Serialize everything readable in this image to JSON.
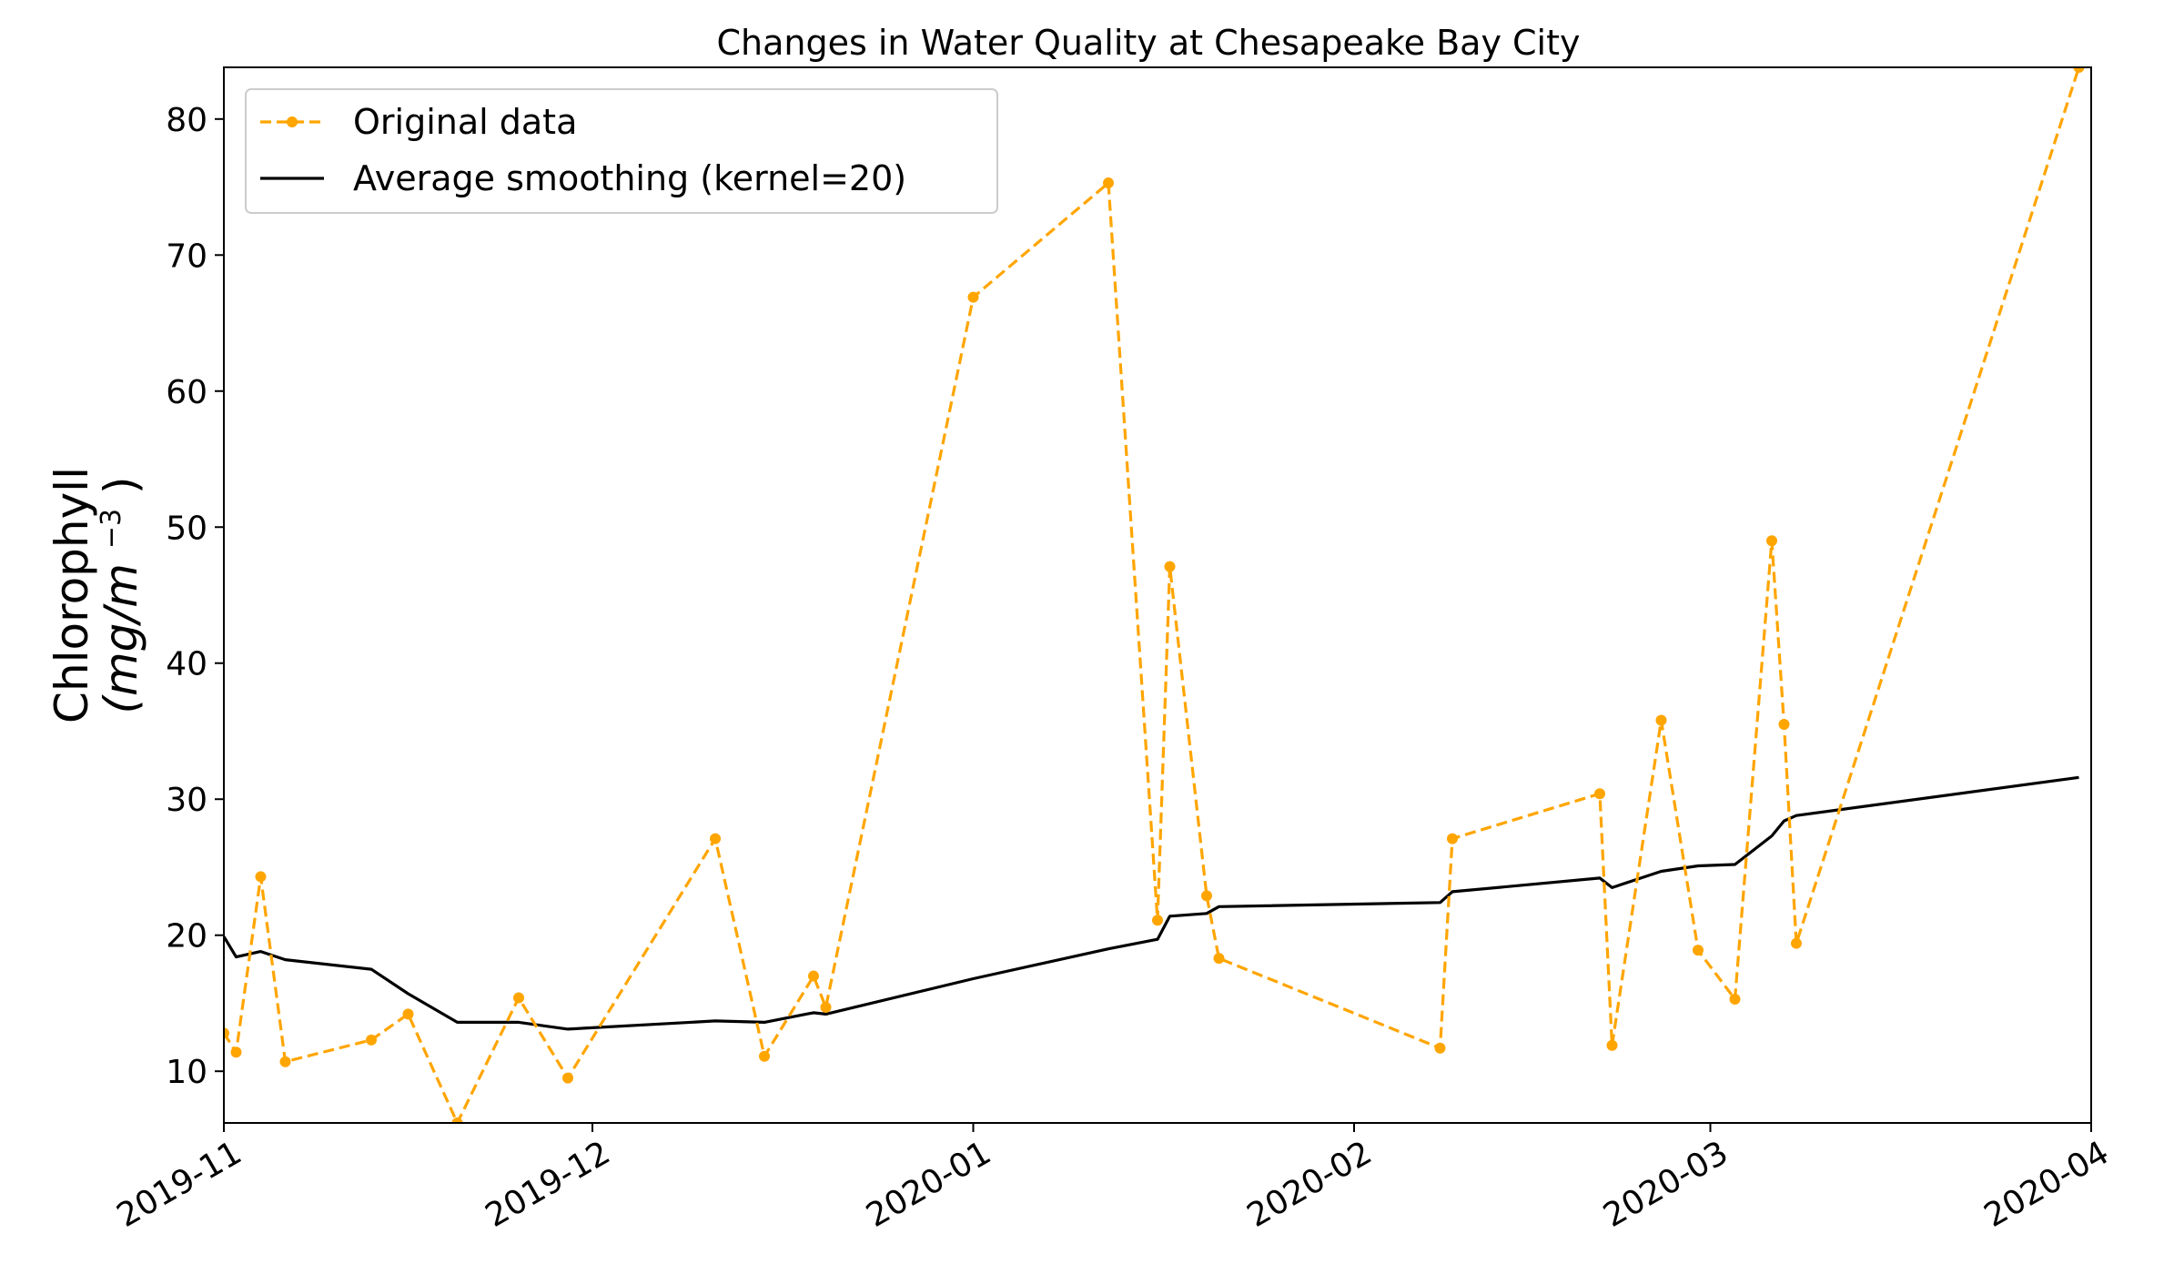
{
  "chart_data": {
    "type": "line",
    "title": "Changes in Water Quality at Chesapeake Bay City",
    "ylabel_line1": "Chlorophyll",
    "ylabel_line2": "(mg/m",
    "ylabel_sup": "−3",
    "ylabel_close": ")",
    "xlabel": "",
    "xlim": [
      "2019-11-01",
      "2020-04-01"
    ],
    "ylim": [
      6.2,
      83.8
    ],
    "xticks": [
      {
        "date": "2019-11-01",
        "label": "2019-11"
      },
      {
        "date": "2019-12-01",
        "label": "2019-12"
      },
      {
        "date": "2020-01-01",
        "label": "2020-01"
      },
      {
        "date": "2020-02-01",
        "label": "2020-02"
      },
      {
        "date": "2020-03-01",
        "label": "2020-03"
      },
      {
        "date": "2020-04-01",
        "label": "2020-04"
      }
    ],
    "yticks": [
      10,
      20,
      30,
      40,
      50,
      60,
      70,
      80
    ],
    "grid": false,
    "legend_position": "top-left",
    "series": [
      {
        "name": "Original data",
        "color": "#ffa500",
        "style": "dashed",
        "marker": "dot",
        "points": [
          {
            "x": "2019-11-01",
            "y": 12.8
          },
          {
            "x": "2019-11-02",
            "y": 11.4
          },
          {
            "x": "2019-11-04",
            "y": 24.3
          },
          {
            "x": "2019-11-06",
            "y": 10.7
          },
          {
            "x": "2019-11-13",
            "y": 12.3
          },
          {
            "x": "2019-11-16",
            "y": 14.2
          },
          {
            "x": "2019-11-20",
            "y": 6.2
          },
          {
            "x": "2019-11-25",
            "y": 15.4
          },
          {
            "x": "2019-11-29",
            "y": 9.5
          },
          {
            "x": "2019-12-11",
            "y": 27.1
          },
          {
            "x": "2019-12-15",
            "y": 11.1
          },
          {
            "x": "2019-12-19",
            "y": 17.0
          },
          {
            "x": "2019-12-20",
            "y": 14.7
          },
          {
            "x": "2020-01-01",
            "y": 66.9
          },
          {
            "x": "2020-01-12",
            "y": 75.3
          },
          {
            "x": "2020-01-16",
            "y": 21.1
          },
          {
            "x": "2020-01-17",
            "y": 47.1
          },
          {
            "x": "2020-01-20",
            "y": 22.9
          },
          {
            "x": "2020-01-21",
            "y": 18.3
          },
          {
            "x": "2020-02-08",
            "y": 11.7
          },
          {
            "x": "2020-02-09",
            "y": 27.1
          },
          {
            "x": "2020-02-21",
            "y": 30.4
          },
          {
            "x": "2020-02-22",
            "y": 11.9
          },
          {
            "x": "2020-02-26",
            "y": 35.8
          },
          {
            "x": "2020-02-29",
            "y": 18.9
          },
          {
            "x": "2020-03-03",
            "y": 15.3
          },
          {
            "x": "2020-03-06",
            "y": 49.0
          },
          {
            "x": "2020-03-07",
            "y": 35.5
          },
          {
            "x": "2020-03-08",
            "y": 19.4
          },
          {
            "x": "2020-03-31",
            "y": 83.8
          }
        ]
      },
      {
        "name": "Average smoothing (kernel=20)",
        "color": "#000000",
        "style": "solid",
        "marker": "none",
        "points": [
          {
            "x": "2019-11-01",
            "y": 19.9
          },
          {
            "x": "2019-11-02",
            "y": 18.4
          },
          {
            "x": "2019-11-04",
            "y": 18.8
          },
          {
            "x": "2019-11-06",
            "y": 18.2
          },
          {
            "x": "2019-11-13",
            "y": 17.5
          },
          {
            "x": "2019-11-16",
            "y": 15.7
          },
          {
            "x": "2019-11-20",
            "y": 13.6
          },
          {
            "x": "2019-11-25",
            "y": 13.6
          },
          {
            "x": "2019-11-29",
            "y": 13.1
          },
          {
            "x": "2019-12-11",
            "y": 13.7
          },
          {
            "x": "2019-12-15",
            "y": 13.6
          },
          {
            "x": "2019-12-19",
            "y": 14.3
          },
          {
            "x": "2019-12-20",
            "y": 14.2
          },
          {
            "x": "2020-01-01",
            "y": 16.8
          },
          {
            "x": "2020-01-12",
            "y": 19.0
          },
          {
            "x": "2020-01-16",
            "y": 19.7
          },
          {
            "x": "2020-01-17",
            "y": 21.4
          },
          {
            "x": "2020-01-20",
            "y": 21.6
          },
          {
            "x": "2020-01-21",
            "y": 22.1
          },
          {
            "x": "2020-02-08",
            "y": 22.4
          },
          {
            "x": "2020-02-09",
            "y": 23.2
          },
          {
            "x": "2020-02-21",
            "y": 24.2
          },
          {
            "x": "2020-02-22",
            "y": 23.5
          },
          {
            "x": "2020-02-26",
            "y": 24.7
          },
          {
            "x": "2020-02-29",
            "y": 25.1
          },
          {
            "x": "2020-03-03",
            "y": 25.2
          },
          {
            "x": "2020-03-06",
            "y": 27.3
          },
          {
            "x": "2020-03-07",
            "y": 28.4
          },
          {
            "x": "2020-03-08",
            "y": 28.8
          },
          {
            "x": "2020-03-31",
            "y": 31.6
          }
        ]
      }
    ]
  }
}
